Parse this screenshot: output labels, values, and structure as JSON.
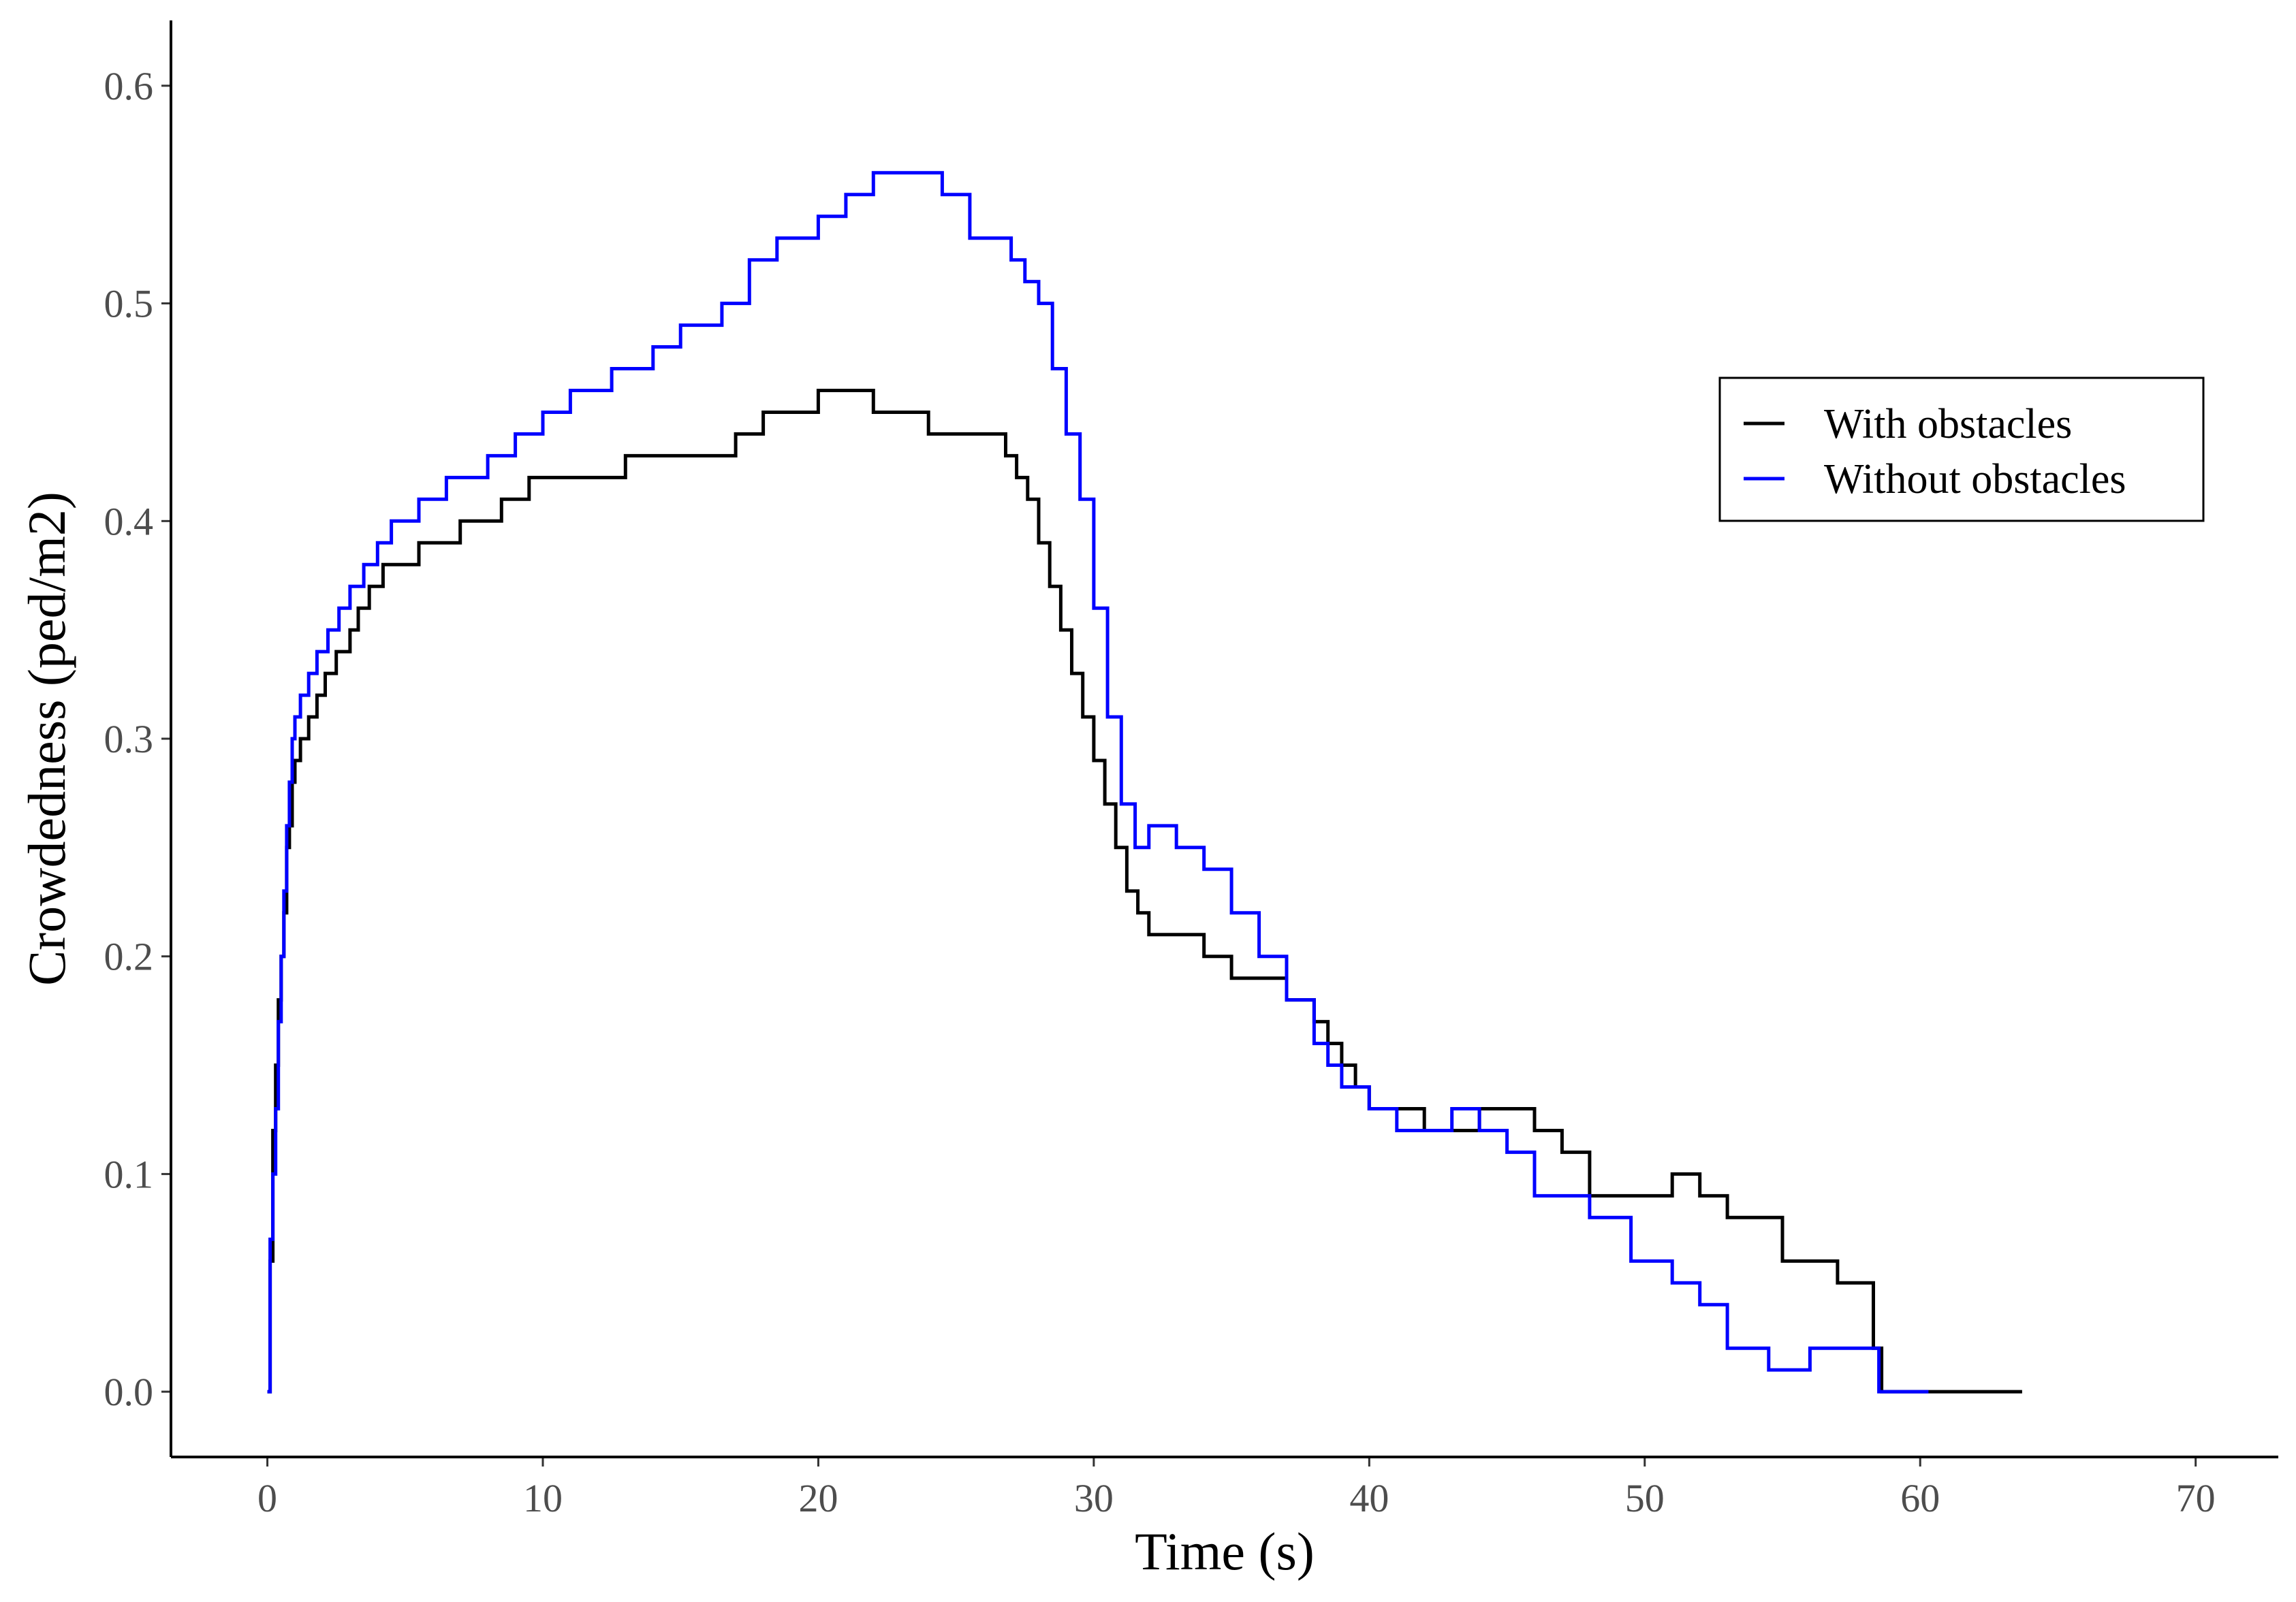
{
  "chart_data": {
    "type": "line",
    "title": "",
    "xlabel": "Time (s)",
    "ylabel": "Crowdedness (ped/m2)",
    "xlim": [
      -3.5,
      73
    ],
    "ylim": [
      -0.03,
      0.63
    ],
    "xticks": [
      0,
      10,
      20,
      30,
      40,
      50,
      60,
      70
    ],
    "xtick_labels": [
      "0",
      "10",
      "20",
      "30",
      "40",
      "50",
      "60",
      "70"
    ],
    "yticks": [
      0.0,
      0.1,
      0.2,
      0.3,
      0.4,
      0.5,
      0.6
    ],
    "ytick_labels": [
      "0.0",
      "0.1",
      "0.2",
      "0.3",
      "0.4",
      "0.5",
      "0.6"
    ],
    "grid": false,
    "legend_position": "right",
    "series": [
      {
        "name": "With obstacles",
        "color": "#000000",
        "step": true,
        "x": [
          0,
          0.1,
          0.2,
          0.3,
          0.4,
          0.5,
          0.6,
          0.7,
          0.8,
          0.9,
          1.0,
          1.2,
          1.5,
          1.8,
          2.1,
          2.5,
          3.0,
          3.3,
          3.7,
          4.2,
          5.0,
          5.5,
          7.0,
          8.5,
          9.5,
          11.0,
          13.0,
          14.5,
          16.0,
          17.0,
          18.0,
          19.0,
          20.0,
          21.0,
          22.0,
          23.0,
          24.0,
          25.0,
          26.0,
          26.8,
          27.2,
          27.6,
          28.0,
          28.4,
          28.8,
          29.2,
          29.6,
          30.0,
          30.4,
          30.8,
          31.2,
          31.6,
          32.0,
          32.5,
          33.0,
          34.0,
          35.0,
          36.0,
          37.0,
          38.0,
          38.5,
          39.0,
          39.5,
          40.0,
          42.0,
          44.0,
          46.0,
          47.0,
          48.0,
          49.5,
          50.0,
          51.0,
          52.0,
          53.0,
          54.0,
          55.0,
          56.0,
          57.0,
          58.0,
          58.3,
          58.6,
          59.0,
          60.0,
          63.7
        ],
        "y": [
          0.0,
          0.06,
          0.12,
          0.15,
          0.18,
          0.2,
          0.22,
          0.25,
          0.26,
          0.28,
          0.29,
          0.3,
          0.31,
          0.32,
          0.33,
          0.34,
          0.35,
          0.36,
          0.37,
          0.38,
          0.38,
          0.39,
          0.4,
          0.41,
          0.42,
          0.42,
          0.43,
          0.43,
          0.43,
          0.44,
          0.45,
          0.45,
          0.46,
          0.46,
          0.45,
          0.45,
          0.44,
          0.44,
          0.44,
          0.43,
          0.42,
          0.41,
          0.39,
          0.37,
          0.35,
          0.33,
          0.31,
          0.29,
          0.27,
          0.25,
          0.23,
          0.22,
          0.21,
          0.21,
          0.21,
          0.2,
          0.19,
          0.19,
          0.18,
          0.17,
          0.16,
          0.15,
          0.14,
          0.13,
          0.12,
          0.13,
          0.12,
          0.11,
          0.09,
          0.09,
          0.09,
          0.1,
          0.09,
          0.08,
          0.08,
          0.06,
          0.06,
          0.05,
          0.05,
          0.02,
          0.0,
          0.0,
          0.0,
          0.0
        ]
      },
      {
        "name": "Without obstacles",
        "color": "#0000ff",
        "step": true,
        "x": [
          0,
          0.1,
          0.2,
          0.3,
          0.4,
          0.5,
          0.6,
          0.7,
          0.8,
          0.9,
          1.0,
          1.2,
          1.5,
          1.8,
          2.2,
          2.6,
          3.0,
          3.5,
          4.0,
          4.5,
          5.5,
          6.5,
          8.0,
          9.0,
          10.0,
          11.0,
          12.5,
          14.0,
          15.0,
          16.5,
          17.5,
          18.5,
          20.0,
          21.0,
          22.0,
          23.5,
          24.5,
          25.5,
          27.0,
          27.5,
          28.0,
          28.5,
          29.0,
          29.5,
          30.0,
          30.5,
          31.0,
          31.5,
          32.0,
          33.0,
          34.0,
          35.0,
          36.0,
          37.0,
          38.0,
          38.5,
          39.0,
          40.0,
          41.0,
          43.0,
          44.0,
          45.0,
          46.0,
          47.0,
          48.0,
          49.5,
          51.0,
          52.0,
          53.0,
          54.5,
          56.0,
          57.0,
          58.0,
          58.5,
          59.0,
          60.3
        ],
        "y": [
          0.0,
          0.07,
          0.1,
          0.13,
          0.17,
          0.2,
          0.23,
          0.26,
          0.28,
          0.3,
          0.31,
          0.32,
          0.33,
          0.34,
          0.35,
          0.36,
          0.37,
          0.38,
          0.39,
          0.4,
          0.41,
          0.42,
          0.43,
          0.44,
          0.45,
          0.46,
          0.47,
          0.48,
          0.49,
          0.5,
          0.52,
          0.53,
          0.54,
          0.55,
          0.56,
          0.56,
          0.55,
          0.53,
          0.52,
          0.51,
          0.5,
          0.47,
          0.44,
          0.41,
          0.36,
          0.31,
          0.27,
          0.25,
          0.26,
          0.25,
          0.24,
          0.22,
          0.2,
          0.18,
          0.16,
          0.15,
          0.14,
          0.13,
          0.12,
          0.13,
          0.12,
          0.11,
          0.09,
          0.09,
          0.08,
          0.06,
          0.05,
          0.04,
          0.02,
          0.01,
          0.02,
          0.02,
          0.02,
          0.0,
          0.0,
          0.0
        ]
      }
    ]
  }
}
